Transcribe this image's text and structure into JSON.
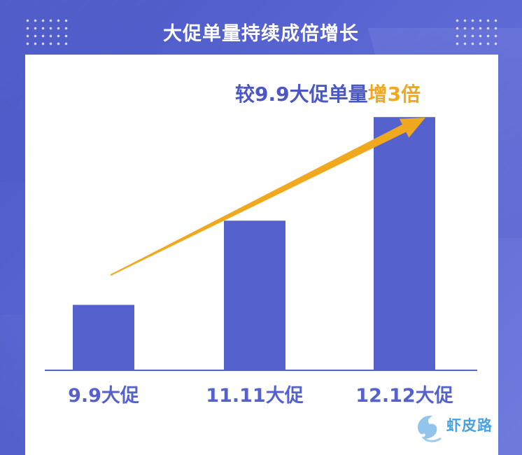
{
  "title": "大促单量持续成倍增长",
  "annotation": {
    "prefix": "较9.9大促单量",
    "highlight": "增3倍"
  },
  "colors": {
    "bar": "#5561cc",
    "axis": "#5561cc",
    "arrow": "#f0a81e",
    "annotation_text": "#4b57c3",
    "highlight": "#f0a81e"
  },
  "chart_data": {
    "type": "bar",
    "categories": [
      "9.9大促",
      "11.11大促",
      "12.12大促"
    ],
    "values": [
      1,
      2.3,
      3.9
    ],
    "title": "大促单量持续成倍增长",
    "xlabel": "",
    "ylabel": "",
    "ylim": [
      0,
      4
    ],
    "grid": false,
    "legend": "none"
  },
  "watermark": {
    "brand": "虾皮路"
  }
}
